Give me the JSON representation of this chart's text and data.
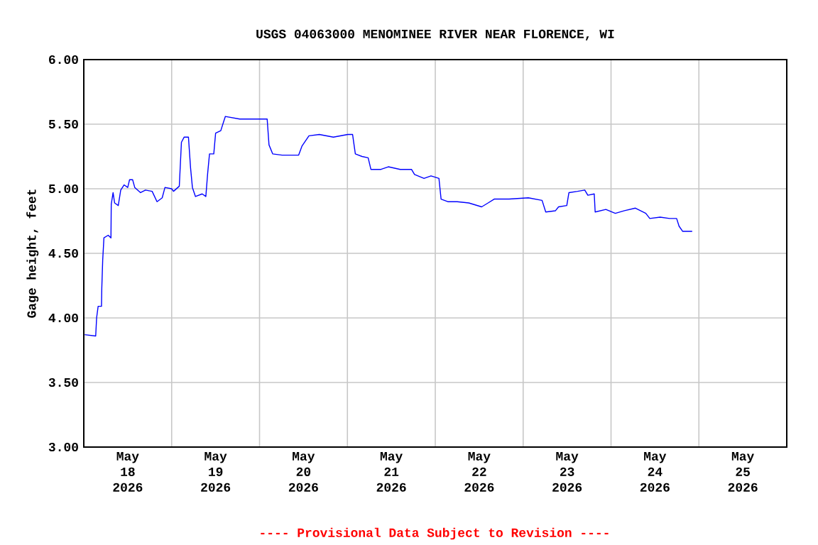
{
  "chart_data": {
    "type": "line",
    "title": "USGS 04063000 MENOMINEE RIVER NEAR FLORENCE, WI",
    "ylabel": "Gage height, feet",
    "color": "#0000ff",
    "grid": true,
    "annotations": [
      "---- Provisional Data Subject to Revision ----"
    ],
    "xlim": [
      "2026-05-18T00:00",
      "2026-05-26T00:00"
    ],
    "ylim": [
      3.0,
      6.0
    ],
    "yticks": [
      {
        "value": 3.0,
        "label": "3.00"
      },
      {
        "value": 3.5,
        "label": "3.50"
      },
      {
        "value": 4.0,
        "label": "4.00"
      },
      {
        "value": 4.5,
        "label": "4.50"
      },
      {
        "value": 5.0,
        "label": "5.00"
      },
      {
        "value": 5.5,
        "label": "5.50"
      },
      {
        "value": 6.0,
        "label": "6.00"
      }
    ],
    "xticks": [
      {
        "value": "2026-05-18T12:00",
        "label": "May 18 2026"
      },
      {
        "value": "2026-05-19T00:00",
        "label": null
      },
      {
        "value": "2026-05-19T12:00",
        "label": "May 19 2026"
      },
      {
        "value": "2026-05-20T00:00",
        "label": null
      },
      {
        "value": "2026-05-20T12:00",
        "label": "May 20 2026"
      },
      {
        "value": "2026-05-21T00:00",
        "label": null
      },
      {
        "value": "2026-05-21T12:00",
        "label": "May 21 2026"
      },
      {
        "value": "2026-05-22T00:00",
        "label": null
      },
      {
        "value": "2026-05-22T12:00",
        "label": "May 22 2026"
      },
      {
        "value": "2026-05-23T00:00",
        "label": null
      },
      {
        "value": "2026-05-23T12:00",
        "label": "May 23 2026"
      },
      {
        "value": "2026-05-24T00:00",
        "label": null
      },
      {
        "value": "2026-05-24T12:00",
        "label": "May 24 2026"
      },
      {
        "value": "2026-05-25T00:00",
        "label": null
      },
      {
        "value": "2026-05-25T12:00",
        "label": "May 25 2026"
      }
    ],
    "x": [
      "2026-05-18T00:15",
      "2026-05-18T03:15",
      "2026-05-18T03:30",
      "2026-05-18T03:55",
      "2026-05-18T04:50",
      "2026-05-18T04:55",
      "2026-05-18T05:10",
      "2026-05-18T05:30",
      "2026-05-18T06:40",
      "2026-05-18T07:25",
      "2026-05-18T07:30",
      "2026-05-18T08:00",
      "2026-05-18T08:25",
      "2026-05-18T09:25",
      "2026-05-18T10:05",
      "2026-05-18T11:00",
      "2026-05-18T12:00",
      "2026-05-18T12:30",
      "2026-05-18T13:20",
      "2026-05-18T13:55",
      "2026-05-18T15:30",
      "2026-05-18T16:50",
      "2026-05-18T18:40",
      "2026-05-18T20:00",
      "2026-05-18T21:25",
      "2026-05-18T22:10",
      "2026-05-19T00:00",
      "2026-05-19T00:30",
      "2026-05-19T02:05",
      "2026-05-19T02:40",
      "2026-05-19T03:25",
      "2026-05-19T04:35",
      "2026-05-19T05:10",
      "2026-05-19T05:40",
      "2026-05-19T06:30",
      "2026-05-19T08:20",
      "2026-05-19T09:20",
      "2026-05-19T09:50",
      "2026-05-19T10:20",
      "2026-05-19T11:30",
      "2026-05-19T12:00",
      "2026-05-19T13:25",
      "2026-05-19T14:05",
      "2026-05-19T14:40",
      "2026-05-19T18:35",
      "2026-05-19T22:30",
      "2026-05-20T02:05",
      "2026-05-20T02:35",
      "2026-05-20T03:35",
      "2026-05-20T06:10",
      "2026-05-20T10:40",
      "2026-05-20T11:35",
      "2026-05-20T13:30",
      "2026-05-20T16:20",
      "2026-05-20T20:10",
      "2026-05-21T00:05",
      "2026-05-21T01:25",
      "2026-05-21T02:10",
      "2026-05-21T04:00",
      "2026-05-21T05:40",
      "2026-05-21T06:25",
      "2026-05-21T09:10",
      "2026-05-21T11:10",
      "2026-05-21T14:25",
      "2026-05-21T17:30",
      "2026-05-21T18:20",
      "2026-05-21T20:55",
      "2026-05-21T22:50",
      "2026-05-22T01:00",
      "2026-05-22T01:35",
      "2026-05-22T03:25",
      "2026-05-22T06:00",
      "2026-05-22T09:10",
      "2026-05-22T12:40",
      "2026-05-22T14:25",
      "2026-05-22T16:05",
      "2026-05-22T20:10",
      "2026-05-23T01:25",
      "2026-05-23T05:10",
      "2026-05-23T06:10",
      "2026-05-23T08:50",
      "2026-05-23T09:40",
      "2026-05-23T11:55",
      "2026-05-23T12:30",
      "2026-05-23T14:50",
      "2026-05-23T16:50",
      "2026-05-23T17:40",
      "2026-05-23T19:25",
      "2026-05-23T19:40",
      "2026-05-23T22:35",
      "2026-05-24T01:10",
      "2026-05-24T03:40",
      "2026-05-24T06:40",
      "2026-05-24T09:30",
      "2026-05-24T10:35",
      "2026-05-24T13:25",
      "2026-05-24T16:00",
      "2026-05-24T17:55",
      "2026-05-24T18:35",
      "2026-05-24T19:35",
      "2026-05-24T22:10"
    ],
    "values": [
      3.87,
      3.86,
      4.0,
      4.09,
      4.09,
      4.23,
      4.45,
      4.62,
      4.64,
      4.62,
      4.88,
      4.97,
      4.89,
      4.87,
      4.99,
      5.03,
      5.01,
      5.07,
      5.07,
      5.01,
      4.97,
      4.99,
      4.98,
      4.9,
      4.93,
      5.01,
      5.0,
      4.98,
      5.02,
      5.36,
      5.4,
      5.4,
      5.16,
      5.01,
      4.94,
      4.96,
      4.94,
      5.12,
      5.27,
      5.27,
      5.43,
      5.45,
      5.51,
      5.56,
      5.54,
      5.54,
      5.54,
      5.34,
      5.27,
      5.26,
      5.26,
      5.33,
      5.41,
      5.42,
      5.4,
      5.42,
      5.42,
      5.27,
      5.25,
      5.24,
      5.15,
      5.15,
      5.17,
      5.15,
      5.15,
      5.11,
      5.08,
      5.1,
      5.08,
      4.92,
      4.9,
      4.9,
      4.89,
      4.86,
      4.89,
      4.92,
      4.92,
      4.93,
      4.91,
      4.82,
      4.83,
      4.86,
      4.87,
      4.97,
      4.98,
      4.99,
      4.95,
      4.96,
      4.82,
      4.84,
      4.81,
      4.83,
      4.85,
      4.81,
      4.77,
      4.78,
      4.77,
      4.77,
      4.71,
      4.67,
      4.67
    ]
  }
}
